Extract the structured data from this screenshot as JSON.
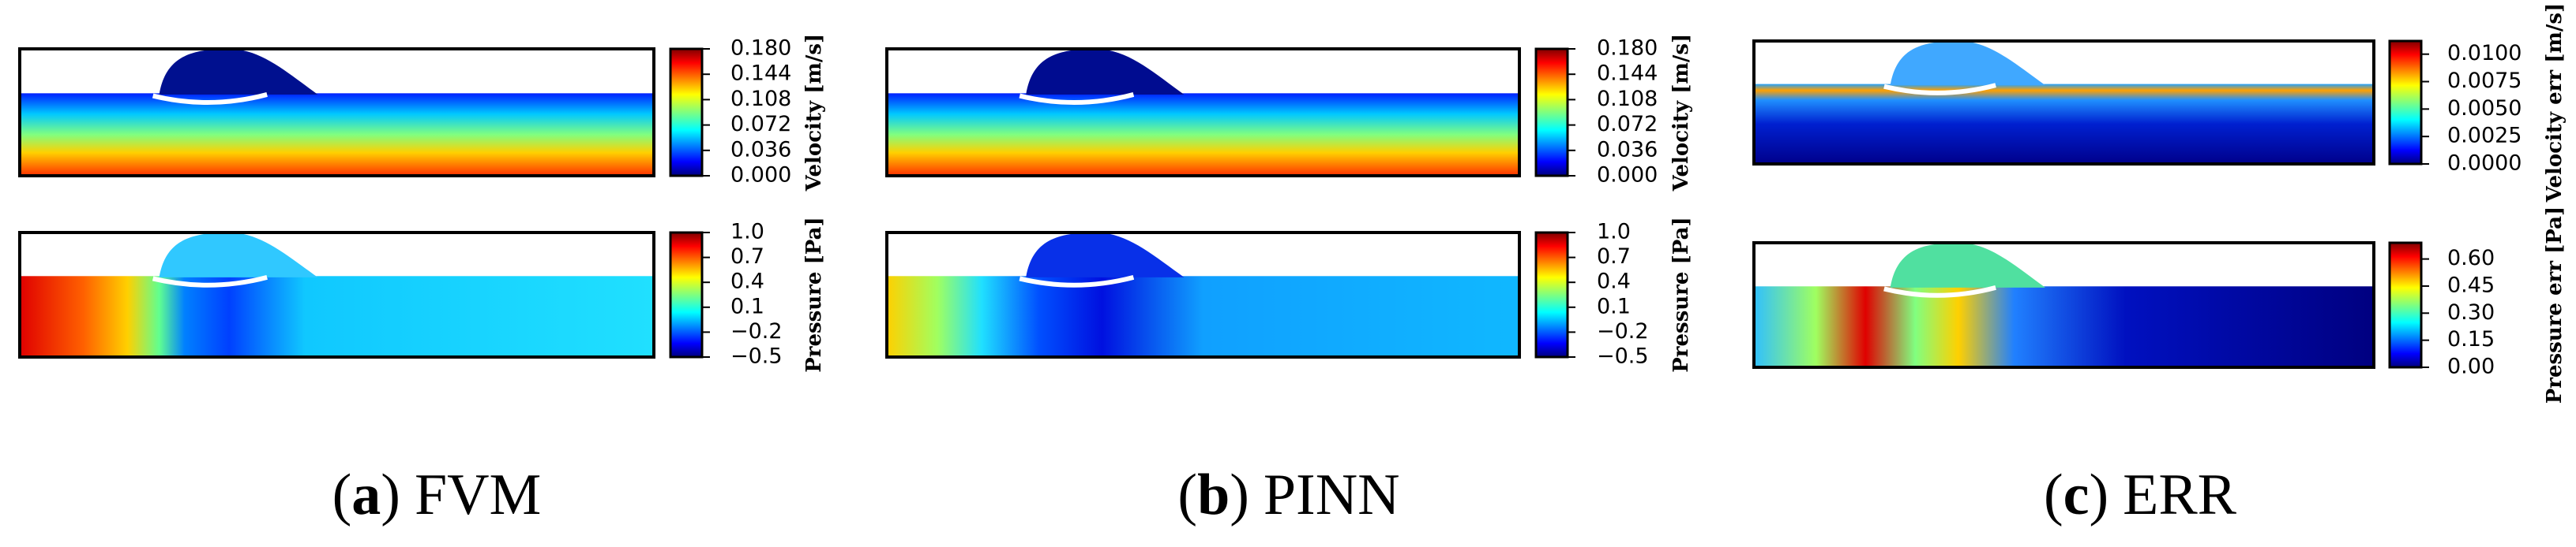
{
  "figure": {
    "panels": [
      {
        "caption": {
          "open": "(",
          "label": "a",
          "close": ")",
          "text": "FVM"
        },
        "plots": [
          {
            "colorbar_label": "Velocity [m/s]",
            "lim": [
              0,
              0.18
            ],
            "ticks": [
              {
                "value": 0,
                "label": "0.000"
              },
              0.036,
              0.072,
              0.108,
              0.144,
              {
                "value": 0.18,
                "label": "0.180"
              }
            ]
          },
          {
            "colorbar_label": "Pressure [Pa]",
            "lim": [
              -0.5,
              1.0
            ],
            "ticks": [
              {
                "value": 1.0,
                "label": "1.0"
              },
              0.7,
              0.4,
              0.1,
              {
                "value": -0.2,
                "label": "−0.2"
              },
              {
                "value": -0.5,
                "label": "−0.5"
              }
            ]
          }
        ]
      },
      {
        "caption": {
          "open": "(",
          "label": "b",
          "close": ")",
          "text": "PINN"
        },
        "plots": [
          {
            "colorbar_label": "Velocity [m/s]",
            "lim": [
              0,
              0.18
            ],
            "ticks": [
              {
                "value": 0,
                "label": "0.000"
              },
              0.036,
              0.072,
              0.108,
              0.144,
              {
                "value": 0.18,
                "label": "0.180"
              }
            ]
          },
          {
            "colorbar_label": "Pressure [Pa]",
            "lim": [
              -0.5,
              1.0
            ],
            "ticks": [
              {
                "value": 1.0,
                "label": "1.0"
              },
              0.7,
              0.4,
              0.1,
              {
                "value": -0.2,
                "label": "−0.2"
              },
              {
                "value": -0.5,
                "label": "−0.5"
              }
            ]
          }
        ]
      },
      {
        "caption": {
          "open": "(",
          "label": "c",
          "close": ")",
          "text": "ERR"
        },
        "plots": [
          {
            "colorbar_label": "Velocity err [m/s]",
            "lim": [
              0,
              0.0112
            ],
            "ticks": [
              {
                "value": 0,
                "label": "0.0000"
              },
              0.0025,
              {
                "value": 0.005,
                "label": "0.0050"
              },
              0.0075,
              {
                "value": 0.01,
                "label": "0.0100"
              }
            ]
          },
          {
            "colorbar_label": "Pressure err [Pa]",
            "lim": [
              0,
              0.69
            ],
            "ticks": [
              {
                "value": 0,
                "label": "0.00"
              },
              0.15,
              {
                "value": 0.3,
                "label": "0.30"
              },
              0.45,
              {
                "value": 0.6,
                "label": "0.60"
              }
            ]
          }
        ]
      }
    ]
  }
}
